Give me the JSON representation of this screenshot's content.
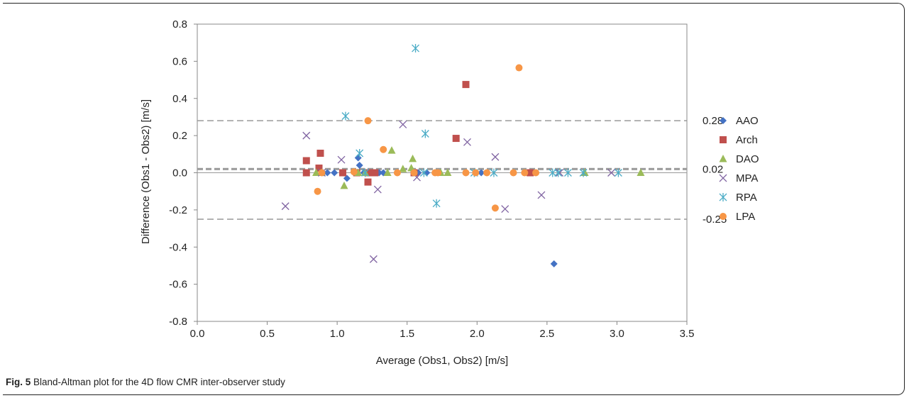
{
  "caption": {
    "label": "Fig. 5",
    "text": "Bland-Altman plot for the 4D flow CMR inter-observer study"
  },
  "chart_data": {
    "type": "scatter",
    "title": "",
    "xlabel": "Average (Obs1, Obs2) [m/s]",
    "ylabel": "Difference (Obs1 - Obs2) [m/s]",
    "xlim": [
      0.0,
      3.5
    ],
    "ylim": [
      -0.8,
      0.8
    ],
    "x_ticks": [
      "0.0",
      "0.5",
      "1.0",
      "1.5",
      "2.0",
      "2.5",
      "3.0",
      "3.5"
    ],
    "y_ticks": [
      "0.8",
      "0.6",
      "0.4",
      "0.2",
      "0.0",
      "-0.2",
      "-0.4",
      "-0.6",
      "-0.8"
    ],
    "x_tick_values": [
      0.0,
      0.5,
      1.0,
      1.5,
      2.0,
      2.5,
      3.0,
      3.5
    ],
    "y_tick_values": [
      0.8,
      0.6,
      0.4,
      0.2,
      0.0,
      -0.2,
      -0.4,
      -0.6,
      -0.8
    ],
    "grid": false,
    "legend_position": "right",
    "reference_lines": [
      {
        "y": 0.28,
        "label": "0.28",
        "style": "dashed"
      },
      {
        "y": 0.02,
        "label": "0.02",
        "style": "dashed-bold"
      },
      {
        "y": -0.25,
        "label": "-0.25",
        "style": "dashed"
      }
    ],
    "series": [
      {
        "name": "AAO",
        "marker": "diamond",
        "color": "#4472c4",
        "points": [
          [
            0.9,
            0.0
          ],
          [
            0.93,
            0.0
          ],
          [
            0.98,
            0.0
          ],
          [
            1.07,
            -0.03
          ],
          [
            1.15,
            0.08
          ],
          [
            1.16,
            0.04
          ],
          [
            1.19,
            0.0
          ],
          [
            1.3,
            0.0
          ],
          [
            1.33,
            0.0
          ],
          [
            1.58,
            0.0
          ],
          [
            1.64,
            0.0
          ],
          [
            2.03,
            0.0
          ],
          [
            2.37,
            0.0
          ],
          [
            2.55,
            -0.49
          ]
        ]
      },
      {
        "name": "Arch",
        "marker": "square",
        "color": "#c0504d",
        "points": [
          [
            0.78,
            0.065
          ],
          [
            0.78,
            0.0
          ],
          [
            0.87,
            0.025
          ],
          [
            0.88,
            0.105
          ],
          [
            1.04,
            0.0
          ],
          [
            1.14,
            0.0
          ],
          [
            1.22,
            -0.05
          ],
          [
            1.23,
            0.0
          ],
          [
            1.27,
            0.0
          ],
          [
            1.55,
            0.0
          ],
          [
            1.85,
            0.185
          ],
          [
            1.92,
            0.475
          ],
          [
            2.38,
            0.0
          ]
        ]
      },
      {
        "name": "DAO",
        "marker": "triangle",
        "color": "#9bbb59",
        "points": [
          [
            0.85,
            0.0
          ],
          [
            0.89,
            0.0
          ],
          [
            1.05,
            -0.07
          ],
          [
            1.15,
            0.0
          ],
          [
            1.2,
            0.0
          ],
          [
            1.36,
            0.0
          ],
          [
            1.39,
            0.12
          ],
          [
            1.47,
            0.02
          ],
          [
            1.53,
            0.025
          ],
          [
            1.54,
            0.075
          ],
          [
            1.74,
            0.0
          ],
          [
            1.79,
            0.0
          ],
          [
            2.77,
            0.0
          ],
          [
            3.17,
            0.0
          ]
        ]
      },
      {
        "name": "MPA",
        "marker": "x",
        "color": "#8064a2",
        "points": [
          [
            0.63,
            -0.18
          ],
          [
            0.78,
            0.2
          ],
          [
            0.89,
            0.0
          ],
          [
            1.03,
            0.07
          ],
          [
            1.26,
            -0.465
          ],
          [
            1.29,
            -0.09
          ],
          [
            1.47,
            0.26
          ],
          [
            1.57,
            -0.025
          ],
          [
            1.93,
            0.165
          ],
          [
            2.13,
            0.085
          ],
          [
            2.2,
            -0.195
          ],
          [
            2.46,
            -0.12
          ],
          [
            2.59,
            0.0
          ],
          [
            2.96,
            0.0
          ]
        ]
      },
      {
        "name": "RPA",
        "marker": "star",
        "color": "#4bacc6",
        "points": [
          [
            1.06,
            0.305
          ],
          [
            1.16,
            0.105
          ],
          [
            1.2,
            0.0
          ],
          [
            1.56,
            0.67
          ],
          [
            1.62,
            0.0
          ],
          [
            1.63,
            0.21
          ],
          [
            1.71,
            -0.165
          ],
          [
            1.98,
            0.0
          ],
          [
            2.12,
            0.0
          ],
          [
            2.54,
            0.0
          ],
          [
            2.58,
            0.0
          ],
          [
            2.65,
            0.0
          ],
          [
            2.76,
            0.0
          ],
          [
            3.01,
            0.0
          ]
        ]
      },
      {
        "name": "LPA",
        "marker": "circle",
        "color": "#f79646",
        "points": [
          [
            0.86,
            -0.1
          ],
          [
            0.89,
            0.0
          ],
          [
            1.12,
            0.005
          ],
          [
            1.22,
            0.28
          ],
          [
            1.33,
            0.125
          ],
          [
            1.43,
            0.0
          ],
          [
            1.55,
            0.0
          ],
          [
            1.7,
            0.0
          ],
          [
            1.72,
            0.0
          ],
          [
            1.92,
            0.0
          ],
          [
            1.99,
            0.0
          ],
          [
            2.07,
            0.0
          ],
          [
            2.13,
            -0.19
          ],
          [
            2.26,
            0.0
          ],
          [
            2.3,
            0.565
          ],
          [
            2.34,
            0.0
          ],
          [
            2.42,
            0.0
          ]
        ]
      }
    ]
  }
}
